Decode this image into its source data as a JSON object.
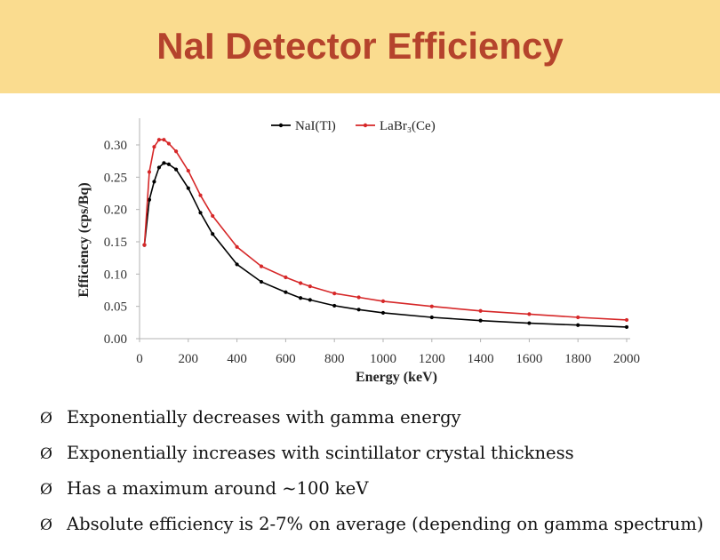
{
  "slide": {
    "title": "NaI Detector Efficiency",
    "bullet_marker": "Ø",
    "bullets": [
      "Exponentially decreases with gamma energy",
      "Exponentially increases with scintillator crystal thickness",
      "Has a maximum around ~100 keV",
      "Absolute efficiency is 2-7% on average (depending on gamma spectrum)"
    ]
  },
  "chart_data": {
    "type": "line",
    "xlabel": "Energy (keV)",
    "ylabel": "Efficiency (cps/Bq)",
    "xlim": [
      0,
      2000
    ],
    "ylim": [
      0,
      0.3
    ],
    "x_ticks": [
      "0",
      "200",
      "400",
      "600",
      "800",
      "1000",
      "1200",
      "1400",
      "1600",
      "1800",
      "2000"
    ],
    "y_ticks": [
      "0.00",
      "0.05",
      "0.10",
      "0.15",
      "0.20",
      "0.25",
      "0.30"
    ],
    "grid": false,
    "legend": "top",
    "series": [
      {
        "name": "NaI(Tl)",
        "color": "#000000",
        "x": [
          20,
          40,
          60,
          80,
          100,
          120,
          150,
          200,
          250,
          300,
          400,
          500,
          600,
          661,
          700,
          800,
          900,
          1000,
          1200,
          1400,
          1600,
          1800,
          2000
        ],
        "y": [
          0.145,
          0.215,
          0.243,
          0.265,
          0.272,
          0.27,
          0.262,
          0.233,
          0.195,
          0.162,
          0.115,
          0.088,
          0.072,
          0.063,
          0.06,
          0.051,
          0.045,
          0.04,
          0.033,
          0.028,
          0.024,
          0.021,
          0.018
        ]
      },
      {
        "name": "LaBr₃(Ce)",
        "color": "#d62728",
        "x": [
          20,
          40,
          60,
          80,
          100,
          120,
          150,
          200,
          250,
          300,
          400,
          500,
          600,
          661,
          700,
          800,
          900,
          1000,
          1200,
          1400,
          1600,
          1800,
          2000
        ],
        "y": [
          0.145,
          0.258,
          0.297,
          0.308,
          0.308,
          0.302,
          0.29,
          0.26,
          0.222,
          0.19,
          0.142,
          0.112,
          0.095,
          0.086,
          0.081,
          0.07,
          0.064,
          0.058,
          0.05,
          0.043,
          0.038,
          0.033,
          0.029
        ]
      }
    ]
  }
}
